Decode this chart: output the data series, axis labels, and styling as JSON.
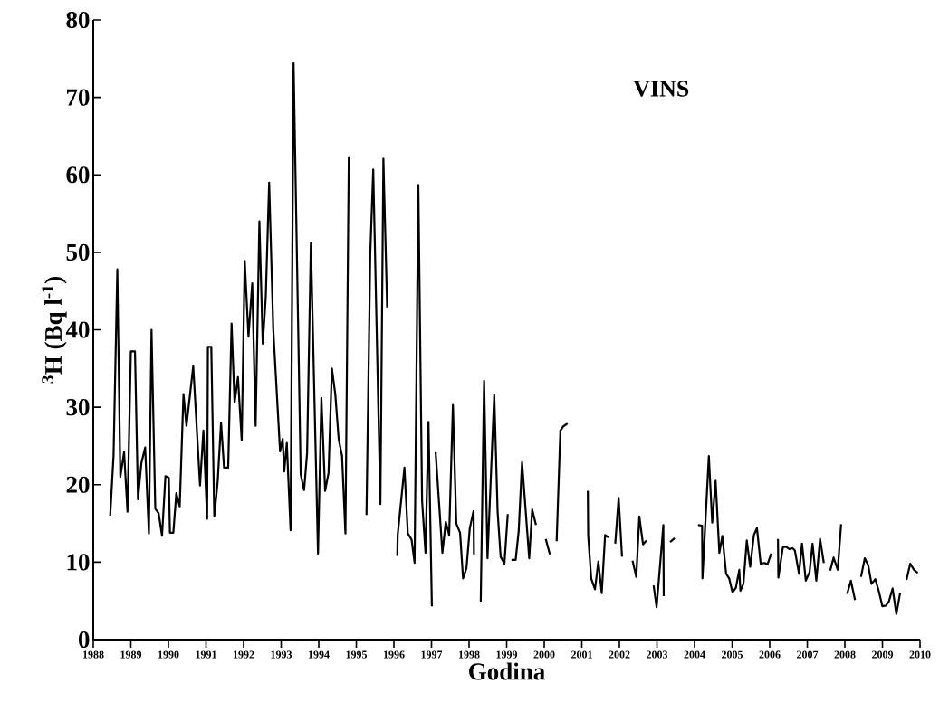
{
  "chart_data": {
    "type": "line",
    "xlabel": "Godina",
    "ylabel": "$^{3}$H (Bq l$^{-1}$)",
    "annotations": [
      "VINS"
    ],
    "xlim": [
      1988,
      2010
    ],
    "ylim": [
      0,
      80
    ],
    "xticks": [
      1988,
      1989,
      1990,
      1991,
      1992,
      1993,
      1994,
      1995,
      1996,
      1997,
      1998,
      1999,
      2000,
      2001,
      2002,
      2003,
      2004,
      2005,
      2006,
      2007,
      2008,
      2009,
      2010
    ],
    "yticks": [
      0,
      10,
      20,
      30,
      40,
      50,
      60,
      70,
      80
    ],
    "line_style": "solid",
    "x": [
      1988.45,
      1988.54,
      1988.64,
      1988.72,
      1988.82,
      1988.91,
      1989.0,
      1989.11,
      1989.19,
      1989.28,
      1989.38,
      1989.48,
      1989.55,
      1989.65,
      1989.74,
      1989.83,
      1989.92,
      1990.01,
      1990.04,
      1990.13,
      1990.21,
      1990.3,
      1990.4,
      1990.48,
      1990.66,
      1990.84,
      1990.93,
      1991.03,
      1991.05,
      1991.14,
      1991.22,
      1991.31,
      1991.4,
      1991.48,
      1991.59,
      1991.68,
      1991.76,
      1991.85,
      1991.95,
      1992.03,
      1992.13,
      1992.23,
      1992.32,
      1992.42,
      1992.51,
      1992.59,
      1992.68,
      1992.79,
      1992.97,
      1993.04,
      1993.08,
      1993.15,
      1993.25,
      1993.33,
      1993.52,
      1993.61,
      1993.69,
      1993.79,
      1993.98,
      1994.07,
      1994.17,
      1994.26,
      1994.35,
      1994.44,
      1994.53,
      1994.62,
      1994.71,
      1994.8,
      1995.0,
      1995.27,
      1995.37,
      1995.45,
      1995.64,
      1995.72,
      1995.82,
      1995.95,
      1996.09,
      1996.1,
      1996.28,
      1996.37,
      1996.47,
      1996.55,
      1996.65,
      1996.75,
      1996.84,
      1996.92,
      1997.01,
      1997.06,
      1997.11,
      1997.21,
      1997.29,
      1997.38,
      1997.47,
      1997.57,
      1997.66,
      1997.76,
      1997.84,
      1997.93,
      1998.02,
      1998.12,
      1998.13,
      1998.2,
      1998.31,
      1998.4,
      1998.49,
      1998.67,
      1998.76,
      1998.84,
      1998.94,
      1999.03,
      1999.08,
      1999.13,
      1999.24,
      1999.32,
      1999.41,
      1999.6,
      1999.68,
      1999.78,
      1999.9,
      2000.04,
      2000.15,
      2000.25,
      2000.33,
      2000.43,
      2000.5,
      2000.62,
      2000.9,
      2001.16,
      2001.17,
      2001.25,
      2001.35,
      2001.44,
      2001.53,
      2001.62,
      2001.71,
      2001.8,
      2001.89,
      2001.98,
      2002.07,
      2002.2,
      2002.35,
      2002.45,
      2002.53,
      2002.63,
      2002.72,
      2002.8,
      2002.91,
      2002.99,
      2003.17,
      2003.18,
      2003.25,
      2003.35,
      2003.47,
      2003.8,
      2004.09,
      2004.2,
      2004.21,
      2004.38,
      2004.47,
      2004.56,
      2004.66,
      2004.74,
      2004.84,
      2004.92,
      2005.01,
      2005.1,
      2005.19,
      2005.22,
      2005.3,
      2005.39,
      2005.48,
      2005.58,
      2005.66,
      2005.76,
      2005.87,
      2005.94,
      2006.04,
      2006.13,
      2006.22,
      2006.23,
      2006.35,
      2006.43,
      2006.52,
      2006.61,
      2006.67,
      2006.78,
      2006.86,
      2006.96,
      2007.06,
      2007.14,
      2007.24,
      2007.34,
      2007.44,
      2007.52,
      2007.61,
      2007.7,
      2007.81,
      2007.9,
      2007.98,
      2008.06,
      2008.16,
      2008.27,
      2008.35,
      2008.43,
      2008.53,
      2008.62,
      2008.71,
      2008.81,
      2008.9,
      2009.0,
      2009.09,
      2009.17,
      2009.27,
      2009.37,
      2009.47,
      2009.55,
      2009.64,
      2009.74,
      2009.84,
      2009.94
    ],
    "series": [
      {
        "color": "#000000",
        "values": [
          16.0,
          23.8,
          47.8,
          21.0,
          24.2,
          16.5,
          37.2,
          37.2,
          18.1,
          22.8,
          24.8,
          13.7,
          40.0,
          16.9,
          16.3,
          13.4,
          21.1,
          20.9,
          13.8,
          13.8,
          18.9,
          17.2,
          31.7,
          27.6,
          35.3,
          19.9,
          27.0,
          15.6,
          37.8,
          37.8,
          15.9,
          20.4,
          28.0,
          22.2,
          22.2,
          40.8,
          30.6,
          33.9,
          25.7,
          48.9,
          39.1,
          46.0,
          27.6,
          54.0,
          38.2,
          44.2,
          59.0,
          40.0,
          24.3,
          25.9,
          21.7,
          25.4,
          14.1,
          74.4,
          21.3,
          19.3,
          24.1,
          51.2,
          11.1,
          31.2,
          19.2,
          21.5,
          35.0,
          31.7,
          25.9,
          23.7,
          13.7,
          62.4,
          null,
          16.1,
          49.7,
          60.7,
          17.5,
          62.1,
          42.9,
          null,
          10.8,
          13.5,
          22.2,
          13.7,
          12.9,
          9.9,
          58.7,
          17.9,
          11.2,
          28.1,
          4.3,
          null,
          24.2,
          17.0,
          11.2,
          15.2,
          13.5,
          30.3,
          15.0,
          13.8,
          7.9,
          9.2,
          14.4,
          16.6,
          11.0,
          null,
          4.9,
          33.4,
          10.5,
          31.6,
          16.5,
          10.7,
          9.8,
          16.2,
          null,
          10.3,
          10.3,
          14.0,
          22.9,
          10.5,
          16.8,
          14.8,
          null,
          13.0,
          11.0,
          null,
          12.7,
          27.0,
          27.5,
          27.9,
          null,
          19.2,
          13.4,
          7.9,
          6.5,
          10.1,
          6.0,
          13.5,
          13.2,
          null,
          12.4,
          18.3,
          10.7,
          null,
          10.2,
          8.1,
          15.9,
          12.3,
          12.8,
          null,
          7.0,
          4.2,
          14.8,
          5.6,
          null,
          12.6,
          13.1,
          null,
          14.8,
          14.7,
          7.9,
          23.7,
          15.1,
          20.5,
          11.2,
          13.4,
          8.5,
          7.9,
          6.1,
          6.7,
          9.0,
          6.3,
          7.2,
          12.8,
          9.4,
          13.5,
          14.4,
          9.8,
          9.9,
          9.7,
          11.1,
          null,
          13.0,
          8.0,
          11.9,
          12.0,
          11.7,
          11.8,
          11.5,
          8.5,
          12.4,
          7.6,
          8.7,
          12.4,
          7.6,
          13.0,
          9.9,
          null,
          8.9,
          10.6,
          9.0,
          14.9,
          null,
          5.9,
          7.6,
          5.1,
          null,
          8.1,
          10.5,
          9.6,
          7.2,
          7.8,
          6.3,
          4.3,
          4.4,
          4.9,
          6.6,
          3.3,
          6.0,
          null,
          7.7,
          9.8,
          9.0,
          8.6
        ]
      }
    ]
  }
}
